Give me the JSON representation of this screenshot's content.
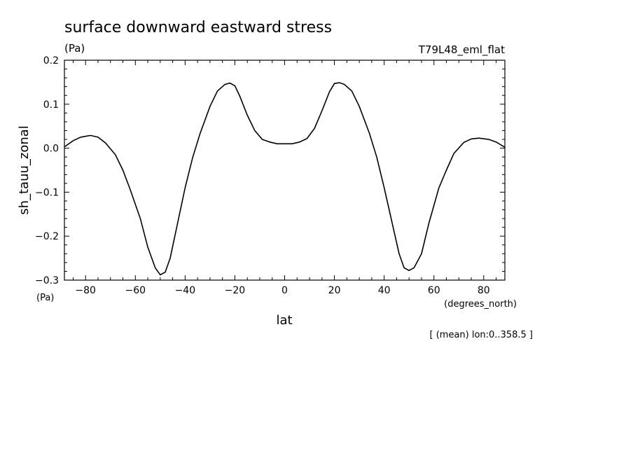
{
  "chart_data": {
    "type": "line",
    "title": "surface downward eastward stress",
    "units_top": "(Pa)",
    "run_label": "T79L48_eml_flat",
    "ylabel": "sh_tauu_zonal",
    "yunits": "(Pa)",
    "xlabel": "lat",
    "xunits": "(degrees_north)",
    "note": "[ (mean) lon:0..358.5 ]",
    "xlim": [
      -88.5,
      88.5
    ],
    "ylim": [
      -0.3,
      0.2
    ],
    "xticks": [
      -80,
      -60,
      -40,
      -20,
      0,
      20,
      40,
      60,
      80
    ],
    "xtick_labels": [
      "−80",
      "−60",
      "−40",
      "−20",
      "0",
      "20",
      "40",
      "60",
      "80"
    ],
    "yticks": [
      -0.3,
      -0.2,
      -0.1,
      0.0,
      0.1,
      0.2
    ],
    "ytick_labels": [
      "−0.3",
      "−0.2",
      "−0.1",
      "0.0",
      "0.1",
      "0.2"
    ],
    "grid": false,
    "line_color": "#000000",
    "series": [
      {
        "x": [
          -88.5,
          -85,
          -82,
          -78,
          -75,
          -72,
          -68,
          -65,
          -62,
          -58,
          -55,
          -52,
          -50,
          -48,
          -46,
          -43,
          -40,
          -37,
          -34,
          -30,
          -27,
          -24,
          -22,
          -20,
          -18,
          -15,
          -12,
          -9,
          -6,
          -3,
          0,
          3,
          6,
          9,
          12,
          15,
          18,
          20,
          22,
          24,
          27,
          30,
          34,
          37,
          40,
          43,
          46,
          48,
          50,
          52,
          55,
          58,
          62,
          65,
          68,
          72,
          75,
          78,
          82,
          85,
          88.5
        ],
        "y": [
          0.003,
          0.017,
          0.025,
          0.029,
          0.025,
          0.012,
          -0.015,
          -0.05,
          -0.095,
          -0.16,
          -0.225,
          -0.272,
          -0.288,
          -0.282,
          -0.25,
          -0.17,
          -0.09,
          -0.022,
          0.033,
          0.095,
          0.13,
          0.145,
          0.148,
          0.142,
          0.118,
          0.075,
          0.04,
          0.02,
          0.014,
          0.01,
          0.01,
          0.01,
          0.014,
          0.022,
          0.045,
          0.085,
          0.128,
          0.147,
          0.149,
          0.145,
          0.13,
          0.095,
          0.035,
          -0.02,
          -0.09,
          -0.165,
          -0.24,
          -0.272,
          -0.278,
          -0.272,
          -0.24,
          -0.17,
          -0.09,
          -0.05,
          -0.012,
          0.013,
          0.021,
          0.023,
          0.02,
          0.014,
          0.002
        ]
      }
    ]
  }
}
